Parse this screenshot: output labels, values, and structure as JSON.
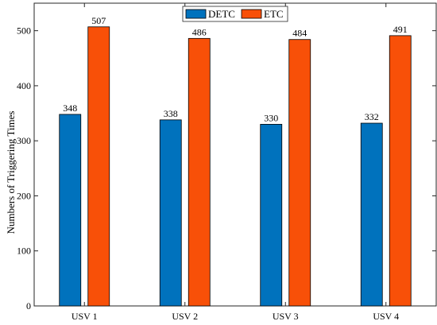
{
  "chart_data": {
    "type": "bar",
    "categories": [
      "USV 1",
      "USV 2",
      "USV 3",
      "USV 4"
    ],
    "series": [
      {
        "name": "DETC",
        "values": [
          348,
          338,
          330,
          332
        ],
        "color": "#0072BD"
      },
      {
        "name": "ETC",
        "values": [
          507,
          486,
          484,
          491
        ],
        "color": "#F85008"
      }
    ],
    "ylabel": "Numbers of Triggering Times",
    "xlabel": "",
    "ylim": [
      0,
      550
    ],
    "yticks": [
      0,
      100,
      200,
      300,
      400,
      500
    ],
    "legend_position": "top-center",
    "grid": false
  }
}
